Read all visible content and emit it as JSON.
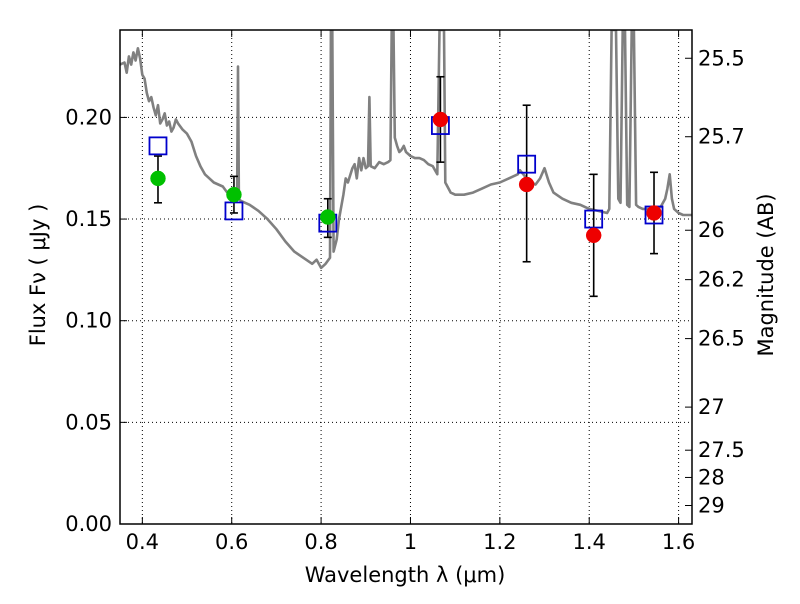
{
  "chart_data": {
    "type": "scatter",
    "xlabel": "Wavelength  λ (μm)",
    "ylabel": "Flux  Fν  ( μJy )",
    "y2label": "Magnitude (AB)",
    "xlim": [
      0.35,
      1.63
    ],
    "ylim": [
      0.0,
      0.243
    ],
    "x_ticks": [
      0.4,
      0.6,
      0.8,
      1.0,
      1.2,
      1.4,
      1.6
    ],
    "x_tick_labels": [
      "0.4",
      "0.6",
      "0.8",
      "1",
      "1.2",
      "1.4",
      "1.6"
    ],
    "y_ticks": [
      0.0,
      0.05,
      0.1,
      0.15,
      0.2
    ],
    "y_tick_labels": [
      "0.00",
      "0.05",
      "0.10",
      "0.15",
      "0.20"
    ],
    "y2_ticks": [
      {
        "label": "25.5",
        "flux": 0.2291
      },
      {
        "label": "25.7",
        "flux": 0.1905
      },
      {
        "label": "26",
        "flux": 0.1445
      },
      {
        "label": "26.2",
        "flux": 0.1202
      },
      {
        "label": "26.5",
        "flux": 0.0912
      },
      {
        "label": "27",
        "flux": 0.0575
      },
      {
        "label": "27.5",
        "flux": 0.0363
      },
      {
        "label": "28",
        "flux": 0.0229
      },
      {
        "label": "29",
        "flux": 0.0091
      }
    ],
    "grid": true,
    "series": [
      {
        "name": "",
        "type": "line",
        "color": "#808080",
        "points": [
          [
            0.35,
            0.226
          ],
          [
            0.36,
            0.227
          ],
          [
            0.365,
            0.222
          ],
          [
            0.37,
            0.23
          ],
          [
            0.375,
            0.226
          ],
          [
            0.38,
            0.232
          ],
          [
            0.385,
            0.228
          ],
          [
            0.39,
            0.234
          ],
          [
            0.395,
            0.229
          ],
          [
            0.4,
            0.221
          ],
          [
            0.405,
            0.219
          ],
          [
            0.41,
            0.212
          ],
          [
            0.415,
            0.208
          ],
          [
            0.42,
            0.21
          ],
          [
            0.425,
            0.205
          ],
          [
            0.43,
            0.201
          ],
          [
            0.435,
            0.206
          ],
          [
            0.44,
            0.197
          ],
          [
            0.445,
            0.199
          ],
          [
            0.45,
            0.202
          ],
          [
            0.455,
            0.196
          ],
          [
            0.46,
            0.198
          ],
          [
            0.465,
            0.193
          ],
          [
            0.47,
            0.195
          ],
          [
            0.475,
            0.199
          ],
          [
            0.48,
            0.197
          ],
          [
            0.49,
            0.194
          ],
          [
            0.5,
            0.192
          ],
          [
            0.51,
            0.188
          ],
          [
            0.52,
            0.181
          ],
          [
            0.53,
            0.176
          ],
          [
            0.54,
            0.172
          ],
          [
            0.55,
            0.17
          ],
          [
            0.56,
            0.168
          ],
          [
            0.57,
            0.167
          ],
          [
            0.58,
            0.166
          ],
          [
            0.59,
            0.163
          ],
          [
            0.6,
            0.162
          ],
          [
            0.605,
            0.161
          ],
          [
            0.61,
            0.163
          ],
          [
            0.612,
            0.16
          ],
          [
            0.614,
            0.225
          ],
          [
            0.616,
            0.16
          ],
          [
            0.62,
            0.159
          ],
          [
            0.64,
            0.157
          ],
          [
            0.66,
            0.154
          ],
          [
            0.68,
            0.15
          ],
          [
            0.7,
            0.145
          ],
          [
            0.72,
            0.139
          ],
          [
            0.74,
            0.134
          ],
          [
            0.76,
            0.131
          ],
          [
            0.78,
            0.128
          ],
          [
            0.79,
            0.13
          ],
          [
            0.8,
            0.126
          ],
          [
            0.81,
            0.128
          ],
          [
            0.82,
            0.131
          ],
          [
            0.822,
            0.243
          ],
          [
            0.825,
            0.243
          ],
          [
            0.828,
            0.134
          ],
          [
            0.835,
            0.14
          ],
          [
            0.84,
            0.15
          ],
          [
            0.85,
            0.162
          ],
          [
            0.855,
            0.17
          ],
          [
            0.86,
            0.168
          ],
          [
            0.87,
            0.175
          ],
          [
            0.875,
            0.177
          ],
          [
            0.88,
            0.17
          ],
          [
            0.885,
            0.18
          ],
          [
            0.89,
            0.174
          ],
          [
            0.895,
            0.18
          ],
          [
            0.9,
            0.175
          ],
          [
            0.905,
            0.176
          ],
          [
            0.908,
            0.21
          ],
          [
            0.911,
            0.176
          ],
          [
            0.92,
            0.175
          ],
          [
            0.93,
            0.178
          ],
          [
            0.94,
            0.177
          ],
          [
            0.95,
            0.178
          ],
          [
            0.955,
            0.179
          ],
          [
            0.958,
            0.243
          ],
          [
            0.962,
            0.243
          ],
          [
            0.965,
            0.19
          ],
          [
            0.97,
            0.186
          ],
          [
            0.975,
            0.183
          ],
          [
            0.98,
            0.184
          ],
          [
            0.985,
            0.186
          ],
          [
            0.99,
            0.183
          ],
          [
            1.0,
            0.181
          ],
          [
            1.01,
            0.18
          ],
          [
            1.02,
            0.18
          ],
          [
            1.03,
            0.179
          ],
          [
            1.04,
            0.177
          ],
          [
            1.05,
            0.176
          ],
          [
            1.06,
            0.172
          ],
          [
            1.065,
            0.243
          ],
          [
            1.075,
            0.243
          ],
          [
            1.078,
            0.168
          ],
          [
            1.09,
            0.163
          ],
          [
            1.1,
            0.162
          ],
          [
            1.12,
            0.162
          ],
          [
            1.14,
            0.163
          ],
          [
            1.16,
            0.165
          ],
          [
            1.18,
            0.167
          ],
          [
            1.2,
            0.168
          ],
          [
            1.22,
            0.17
          ],
          [
            1.24,
            0.172
          ],
          [
            1.245,
            0.174
          ],
          [
            1.26,
            0.17
          ],
          [
            1.27,
            0.168
          ],
          [
            1.28,
            0.167
          ],
          [
            1.29,
            0.17
          ],
          [
            1.3,
            0.175
          ],
          [
            1.31,
            0.168
          ],
          [
            1.32,
            0.163
          ],
          [
            1.34,
            0.16
          ],
          [
            1.36,
            0.158
          ],
          [
            1.38,
            0.157
          ],
          [
            1.4,
            0.155
          ],
          [
            1.42,
            0.154
          ],
          [
            1.44,
            0.153
          ],
          [
            1.445,
            0.155
          ],
          [
            1.45,
            0.243
          ],
          [
            1.46,
            0.243
          ],
          [
            1.465,
            0.16
          ],
          [
            1.47,
            0.158
          ],
          [
            1.475,
            0.243
          ],
          [
            1.48,
            0.243
          ],
          [
            1.485,
            0.157
          ],
          [
            1.49,
            0.156
          ],
          [
            1.495,
            0.243
          ],
          [
            1.5,
            0.243
          ],
          [
            1.505,
            0.157
          ],
          [
            1.51,
            0.156
          ],
          [
            1.52,
            0.155
          ],
          [
            1.53,
            0.155
          ],
          [
            1.54,
            0.154
          ],
          [
            1.55,
            0.155
          ],
          [
            1.56,
            0.156
          ],
          [
            1.57,
            0.16
          ],
          [
            1.575,
            0.165
          ],
          [
            1.58,
            0.172
          ],
          [
            1.585,
            0.16
          ],
          [
            1.59,
            0.155
          ],
          [
            1.6,
            0.153
          ],
          [
            1.61,
            0.152
          ],
          [
            1.63,
            0.152
          ]
        ]
      },
      {
        "name": "",
        "type": "errorbar",
        "color": "#000000",
        "points": [
          {
            "x": 0.435,
            "y": 0.17,
            "lo": 0.158,
            "hi": 0.181
          },
          {
            "x": 0.605,
            "y": 0.162,
            "lo": 0.153,
            "hi": 0.171
          },
          {
            "x": 0.815,
            "y": 0.151,
            "lo": 0.141,
            "hi": 0.16
          },
          {
            "x": 1.067,
            "y": 0.199,
            "lo": 0.178,
            "hi": 0.22
          },
          {
            "x": 1.26,
            "y": 0.167,
            "lo": 0.129,
            "hi": 0.206
          },
          {
            "x": 1.41,
            "y": 0.142,
            "lo": 0.112,
            "hi": 0.172
          },
          {
            "x": 1.545,
            "y": 0.153,
            "lo": 0.133,
            "hi": 0.173
          }
        ]
      },
      {
        "name": "",
        "type": "scatter",
        "marker": "circle",
        "color": "#00c000",
        "x": [
          0.435,
          0.605,
          0.815
        ],
        "y": [
          0.17,
          0.162,
          0.151
        ]
      },
      {
        "name": "",
        "type": "scatter",
        "marker": "circle",
        "color": "#ee0000",
        "x": [
          1.067,
          1.26,
          1.41,
          1.545
        ],
        "y": [
          0.199,
          0.167,
          0.142,
          0.153
        ]
      },
      {
        "name": "",
        "type": "scatter",
        "marker": "square-open",
        "color": "#0000cc",
        "x": [
          0.435,
          0.605,
          0.815,
          1.067,
          1.26,
          1.41,
          1.545
        ],
        "y": [
          0.186,
          0.154,
          0.148,
          0.196,
          0.177,
          0.15,
          0.152
        ]
      }
    ]
  }
}
